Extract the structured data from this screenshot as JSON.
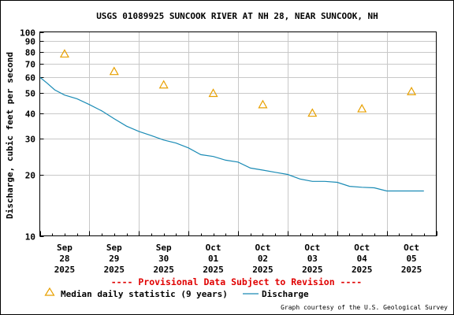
{
  "chart_data": {
    "type": "line",
    "title": "USGS 01089925 SUNCOOK RIVER AT NH 28, NEAR SUNCOOK, NH",
    "ylabel": "Discharge, cubic feet per second",
    "xlabel": "",
    "y_scale": "log",
    "ylim": [
      10,
      100
    ],
    "y_ticks": [
      10,
      20,
      30,
      40,
      50,
      60,
      70,
      80,
      90,
      100
    ],
    "y_tick_labels": [
      "10",
      "20",
      "30",
      "40",
      "50",
      "60",
      "70",
      "80",
      "90",
      "100"
    ],
    "x_ticks": [
      {
        "pos": 0.5,
        "lines": [
          "Sep",
          "28",
          "2025"
        ]
      },
      {
        "pos": 1.5,
        "lines": [
          "Sep",
          "29",
          "2025"
        ]
      },
      {
        "pos": 2.5,
        "lines": [
          "Sep",
          "30",
          "2025"
        ]
      },
      {
        "pos": 3.5,
        "lines": [
          "Oct",
          "01",
          "2025"
        ]
      },
      {
        "pos": 4.5,
        "lines": [
          "Oct",
          "02",
          "2025"
        ]
      },
      {
        "pos": 5.5,
        "lines": [
          "Oct",
          "03",
          "2025"
        ]
      },
      {
        "pos": 6.5,
        "lines": [
          "Oct",
          "04",
          "2025"
        ]
      },
      {
        "pos": 7.5,
        "lines": [
          "Oct",
          "05",
          "2025"
        ]
      }
    ],
    "xlim": [
      0,
      8
    ],
    "grid": true,
    "series": [
      {
        "name": "Median daily statistic (9 years)",
        "kind": "marker",
        "color": "#e8a000",
        "points": [
          {
            "x": 0.5,
            "y": 78
          },
          {
            "x": 1.5,
            "y": 64
          },
          {
            "x": 2.5,
            "y": 55
          },
          {
            "x": 3.5,
            "y": 50
          },
          {
            "x": 4.5,
            "y": 44
          },
          {
            "x": 5.5,
            "y": 40
          },
          {
            "x": 6.5,
            "y": 42
          },
          {
            "x": 7.5,
            "y": 51
          }
        ]
      },
      {
        "name": "Discharge",
        "kind": "line",
        "color": "#1a8bb5",
        "points": [
          {
            "x": 0.0,
            "y": 60
          },
          {
            "x": 0.15,
            "y": 56
          },
          {
            "x": 0.3,
            "y": 52
          },
          {
            "x": 0.5,
            "y": 49
          },
          {
            "x": 0.75,
            "y": 47
          },
          {
            "x": 1.0,
            "y": 44
          },
          {
            "x": 1.25,
            "y": 41
          },
          {
            "x": 1.5,
            "y": 37.5
          },
          {
            "x": 1.75,
            "y": 34.5
          },
          {
            "x": 2.0,
            "y": 32.5
          },
          {
            "x": 2.25,
            "y": 31
          },
          {
            "x": 2.5,
            "y": 29.5
          },
          {
            "x": 2.75,
            "y": 28.5
          },
          {
            "x": 3.0,
            "y": 27
          },
          {
            "x": 3.25,
            "y": 25
          },
          {
            "x": 3.5,
            "y": 24.5
          },
          {
            "x": 3.75,
            "y": 23.5
          },
          {
            "x": 4.0,
            "y": 23
          },
          {
            "x": 4.25,
            "y": 21.5
          },
          {
            "x": 4.5,
            "y": 21
          },
          {
            "x": 4.75,
            "y": 20.5
          },
          {
            "x": 5.0,
            "y": 20
          },
          {
            "x": 5.25,
            "y": 19
          },
          {
            "x": 5.5,
            "y": 18.5
          },
          {
            "x": 5.75,
            "y": 18.5
          },
          {
            "x": 6.0,
            "y": 18.3
          },
          {
            "x": 6.25,
            "y": 17.5
          },
          {
            "x": 6.5,
            "y": 17.3
          },
          {
            "x": 6.75,
            "y": 17.2
          },
          {
            "x": 7.0,
            "y": 16.6
          },
          {
            "x": 7.25,
            "y": 16.6
          },
          {
            "x": 7.5,
            "y": 16.6
          },
          {
            "x": 7.75,
            "y": 16.6
          }
        ]
      }
    ],
    "provisional_note": "---- Provisional Data Subject to Revision ----",
    "provisional_color": "#e00000",
    "legend_placement": "bottom",
    "credit": "Graph courtesy of the U.S. Geological Survey"
  }
}
